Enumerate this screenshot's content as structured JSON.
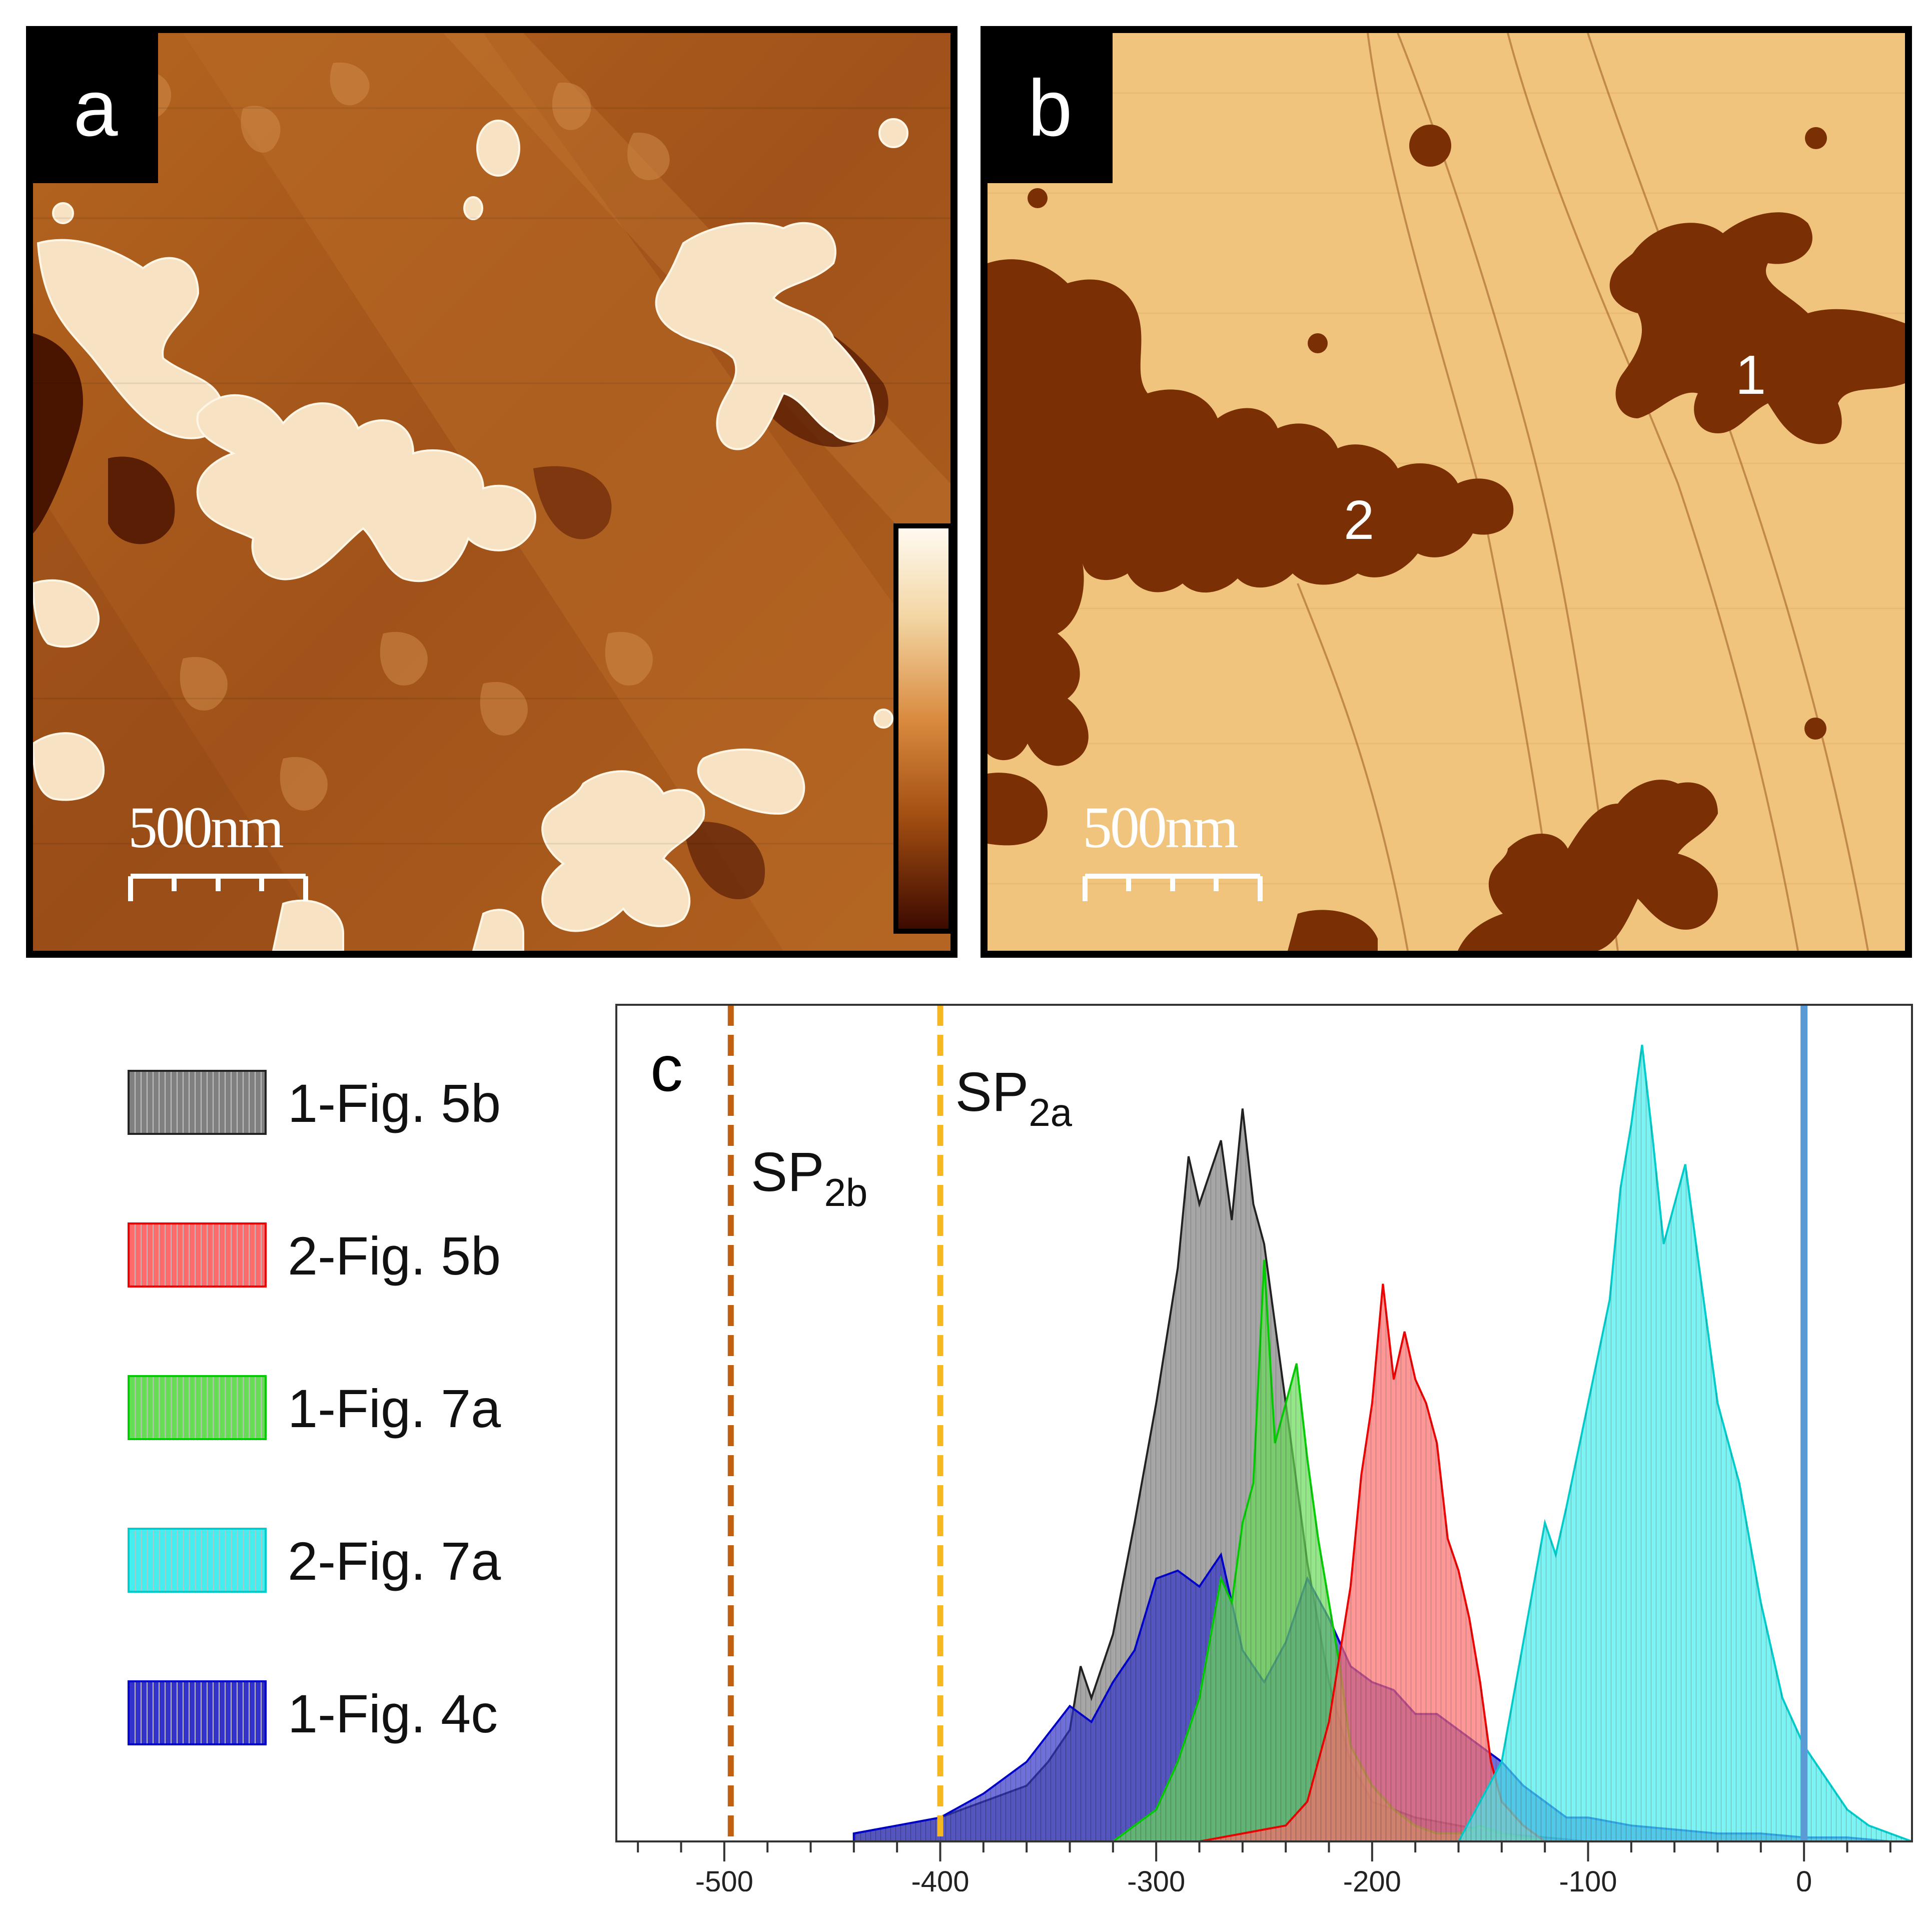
{
  "panels": {
    "a": {
      "tag": "a",
      "scale_label": "500nm"
    },
    "b": {
      "tag": "b",
      "scale_label": "500nm",
      "region_labels": [
        "1",
        "2"
      ]
    },
    "c": {
      "tag": "c"
    }
  },
  "legend": [
    {
      "label": "1-Fig. 5b",
      "color": "#808080"
    },
    {
      "label": "2-Fig. 5b",
      "color": "#ff6b6b"
    },
    {
      "label": "1-Fig. 7a",
      "color": "#66dd55"
    },
    {
      "label": "2-Fig. 7a",
      "color": "#44eeee"
    },
    {
      "label": "1-Fig. 4c",
      "color": "#3333cc"
    }
  ],
  "chart_data": {
    "type": "area",
    "x_ticks": [
      "-500",
      "-400",
      "-300",
      "-200",
      "-100",
      "0"
    ],
    "xlim": [
      -550,
      50
    ],
    "ylim": [
      0,
      1
    ],
    "grid": false,
    "legend_placement": "left",
    "vertical_lines": [
      {
        "x": -497,
        "style": "dashed",
        "color": "#c06010",
        "label_main": "SP",
        "label_sub": "2b"
      },
      {
        "x": -400,
        "style": "dashed",
        "color": "#f5b820",
        "label_main": "SP",
        "label_sub": "2a"
      },
      {
        "x": 0,
        "style": "solid",
        "color": "#5b9bd5",
        "label_main": "",
        "label_sub": ""
      }
    ],
    "series": [
      {
        "name": "1-Fig. 5b",
        "color": "#808080",
        "stroke": "#222222",
        "x": [
          -440,
          -420,
          -400,
          -380,
          -360,
          -350,
          -340,
          -335,
          -330,
          -320,
          -310,
          -300,
          -290,
          -285,
          -280,
          -275,
          -270,
          -265,
          -260,
          -255,
          -250,
          -245,
          -240,
          -230,
          -220,
          -210,
          -200,
          -180,
          -160,
          -140,
          -120,
          -100
        ],
        "y": [
          0.01,
          0.02,
          0.03,
          0.05,
          0.07,
          0.1,
          0.14,
          0.22,
          0.18,
          0.26,
          0.4,
          0.55,
          0.72,
          0.86,
          0.8,
          0.84,
          0.88,
          0.78,
          0.92,
          0.8,
          0.75,
          0.65,
          0.55,
          0.35,
          0.2,
          0.1,
          0.05,
          0.03,
          0.02,
          0.01,
          0.005,
          0
        ]
      },
      {
        "name": "1-Fig. 4c",
        "color": "#3333cc",
        "stroke": "#0000cc",
        "x": [
          -440,
          -420,
          -400,
          -380,
          -360,
          -340,
          -330,
          -320,
          -310,
          -300,
          -290,
          -280,
          -270,
          -260,
          -250,
          -240,
          -230,
          -220,
          -210,
          -200,
          -190,
          -180,
          -170,
          -160,
          -150,
          -140,
          -130,
          -120,
          -110,
          -100,
          -80,
          -60,
          -40,
          -20,
          0,
          20,
          40
        ],
        "y": [
          0.01,
          0.02,
          0.03,
          0.06,
          0.1,
          0.17,
          0.15,
          0.2,
          0.24,
          0.33,
          0.34,
          0.32,
          0.36,
          0.24,
          0.2,
          0.25,
          0.33,
          0.28,
          0.22,
          0.2,
          0.19,
          0.16,
          0.16,
          0.14,
          0.12,
          0.1,
          0.07,
          0.05,
          0.03,
          0.03,
          0.02,
          0.015,
          0.01,
          0.01,
          0.005,
          0.005,
          0
        ]
      },
      {
        "name": "1-Fig. 7a",
        "color": "#66dd55",
        "stroke": "#00cc00",
        "x": [
          -320,
          -300,
          -290,
          -280,
          -270,
          -265,
          -260,
          -255,
          -250,
          -245,
          -240,
          -235,
          -230,
          -225,
          -220,
          -215,
          -210,
          -200,
          -190,
          -180,
          -170,
          -160,
          -150,
          -140,
          -120
        ],
        "y": [
          0,
          0.04,
          0.1,
          0.18,
          0.33,
          0.3,
          0.4,
          0.45,
          0.73,
          0.5,
          0.55,
          0.6,
          0.48,
          0.38,
          0.3,
          0.22,
          0.12,
          0.07,
          0.04,
          0.02,
          0.01,
          0.01,
          0.02,
          0.01,
          0
        ]
      },
      {
        "name": "2-Fig. 5b",
        "color": "#ff6b6b",
        "stroke": "#ee0000",
        "x": [
          -280,
          -260,
          -240,
          -230,
          -220,
          -210,
          -205,
          -200,
          -195,
          -190,
          -185,
          -180,
          -175,
          -170,
          -165,
          -160,
          -155,
          -150,
          -145,
          -140,
          -130,
          -120
        ],
        "y": [
          0,
          0.01,
          0.02,
          0.05,
          0.15,
          0.32,
          0.46,
          0.55,
          0.7,
          0.58,
          0.64,
          0.58,
          0.55,
          0.5,
          0.38,
          0.34,
          0.28,
          0.2,
          0.1,
          0.05,
          0.02,
          0
        ]
      },
      {
        "name": "2-Fig. 7a",
        "color": "#44eeee",
        "stroke": "#00cccc",
        "x": [
          -160,
          -150,
          -140,
          -130,
          -120,
          -115,
          -110,
          -100,
          -90,
          -85,
          -80,
          -75,
          -70,
          -65,
          -60,
          -55,
          -50,
          -40,
          -30,
          -20,
          -10,
          0,
          10,
          20,
          30,
          40,
          50
        ],
        "y": [
          0,
          0.05,
          0.1,
          0.25,
          0.4,
          0.36,
          0.42,
          0.55,
          0.68,
          0.82,
          0.9,
          1.0,
          0.88,
          0.75,
          0.8,
          0.85,
          0.75,
          0.55,
          0.45,
          0.3,
          0.18,
          0.12,
          0.08,
          0.04,
          0.02,
          0.01,
          0
        ]
      }
    ]
  }
}
